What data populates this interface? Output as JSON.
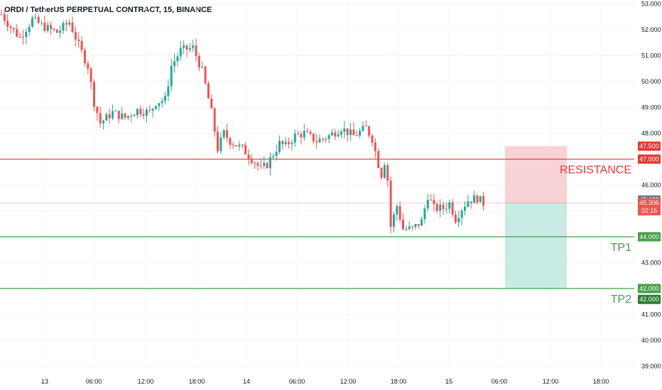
{
  "header": {
    "title": "ORDI / TetherUS PERPETUAL CONTRACT, 15, BINANCE"
  },
  "colors": {
    "up": "#26a69a",
    "down": "#ef5350",
    "resistance": "#e53935",
    "support": "#43a047",
    "stop_zone": "#f8d2d4",
    "target_zone": "#c8ebe3",
    "grid": "#f0f3fa",
    "axis_text": "#131722"
  },
  "chart_data": {
    "type": "candlestick",
    "title": "ORDI / TetherUS PERPETUAL CONTRACT, 15, BINANCE",
    "y_axis": {
      "side": "right",
      "ylim": [
        38.9,
        53.15
      ],
      "ticks": [
        "53.000",
        "52.000",
        "51.000",
        "50.000",
        "49.000",
        "48.000",
        "47.000",
        "46.000",
        "45.000",
        "44.000",
        "43.000",
        "42.000",
        "41.000",
        "40.000",
        "39.000"
      ]
    },
    "x_axis": {
      "ticks": [
        "13",
        "06:00",
        "12:00",
        "18:00",
        "14",
        "06:00",
        "12:00",
        "18:00",
        "15",
        "06:00",
        "12:00",
        "18:00"
      ]
    },
    "grid": true,
    "price_path": [
      [
        0,
        52.6
      ],
      [
        3,
        52.1
      ],
      [
        6,
        51.7
      ],
      [
        10,
        52.4
      ],
      [
        14,
        52.1
      ],
      [
        18,
        51.9
      ],
      [
        22,
        52.3
      ],
      [
        25,
        51.4
      ],
      [
        28,
        50.6
      ],
      [
        30,
        49.2
      ],
      [
        32,
        48.4
      ],
      [
        36,
        48.8
      ],
      [
        40,
        48.6
      ],
      [
        44,
        48.9
      ],
      [
        48,
        48.8
      ],
      [
        50,
        49.2
      ],
      [
        53,
        49.3
      ],
      [
        55,
        50.6
      ],
      [
        58,
        51.2
      ],
      [
        62,
        51.3
      ],
      [
        65,
        50.4
      ],
      [
        68,
        48.8
      ],
      [
        70,
        47.4
      ],
      [
        72,
        48.0
      ],
      [
        74,
        47.7
      ],
      [
        78,
        47.4
      ],
      [
        82,
        46.9
      ],
      [
        84,
        46.6
      ],
      [
        86,
        46.8
      ],
      [
        88,
        47.2
      ],
      [
        90,
        47.6
      ],
      [
        92,
        47.5
      ],
      [
        95,
        47.9
      ],
      [
        98,
        48.0
      ],
      [
        102,
        47.7
      ],
      [
        106,
        47.9
      ],
      [
        110,
        48.2
      ],
      [
        114,
        47.9
      ],
      [
        118,
        48.2
      ],
      [
        120,
        47.8
      ],
      [
        122,
        46.8
      ],
      [
        123,
        46.4
      ],
      [
        124,
        46.9
      ],
      [
        125,
        46.2
      ],
      [
        126,
        44.4
      ],
      [
        127,
        44.8
      ],
      [
        128,
        45.2
      ],
      [
        130,
        44.3
      ],
      [
        133,
        44.3
      ],
      [
        136,
        44.6
      ],
      [
        138,
        45.6
      ],
      [
        140,
        45.1
      ],
      [
        143,
        45.1
      ],
      [
        145,
        45.3
      ],
      [
        147,
        44.7
      ],
      [
        149,
        45.1
      ],
      [
        151,
        45.4
      ],
      [
        154,
        45.5
      ],
      [
        155,
        45.4
      ],
      [
        156,
        45.3
      ]
    ],
    "candles_count": 156,
    "horizontal_lines": [
      {
        "price": 47.0,
        "label": "RESISTANCE",
        "color": "#e53935"
      },
      {
        "price": 44.0,
        "label": "TP1",
        "color": "#43a047"
      },
      {
        "price": 42.0,
        "label": "TP2",
        "color": "#43a047"
      }
    ],
    "current_price_line": {
      "price": 45.306,
      "color": "#f4c7c9"
    },
    "position": {
      "entry": 45.306,
      "stop": 47.5,
      "target": 42.0,
      "from_index": 163,
      "to_index": 183
    },
    "price_tags": [
      {
        "price": 47.5,
        "text": "47.500",
        "color": "#e53935"
      },
      {
        "price": 47.0,
        "text": "47.000",
        "color": "#e53935"
      },
      {
        "price": 45.423,
        "text": "45.423",
        "color": "#787b86"
      },
      {
        "price": 45.306,
        "text": "45.306",
        "sub": "02:16",
        "color": "#ef5350"
      },
      {
        "price": 44.0,
        "text": "44.000",
        "color": "#43a047"
      },
      {
        "price": 42.0,
        "text": "42.000",
        "color": "#43a047"
      },
      {
        "price": 41.58,
        "text": "42.000",
        "color": "#2e7d32"
      }
    ]
  }
}
